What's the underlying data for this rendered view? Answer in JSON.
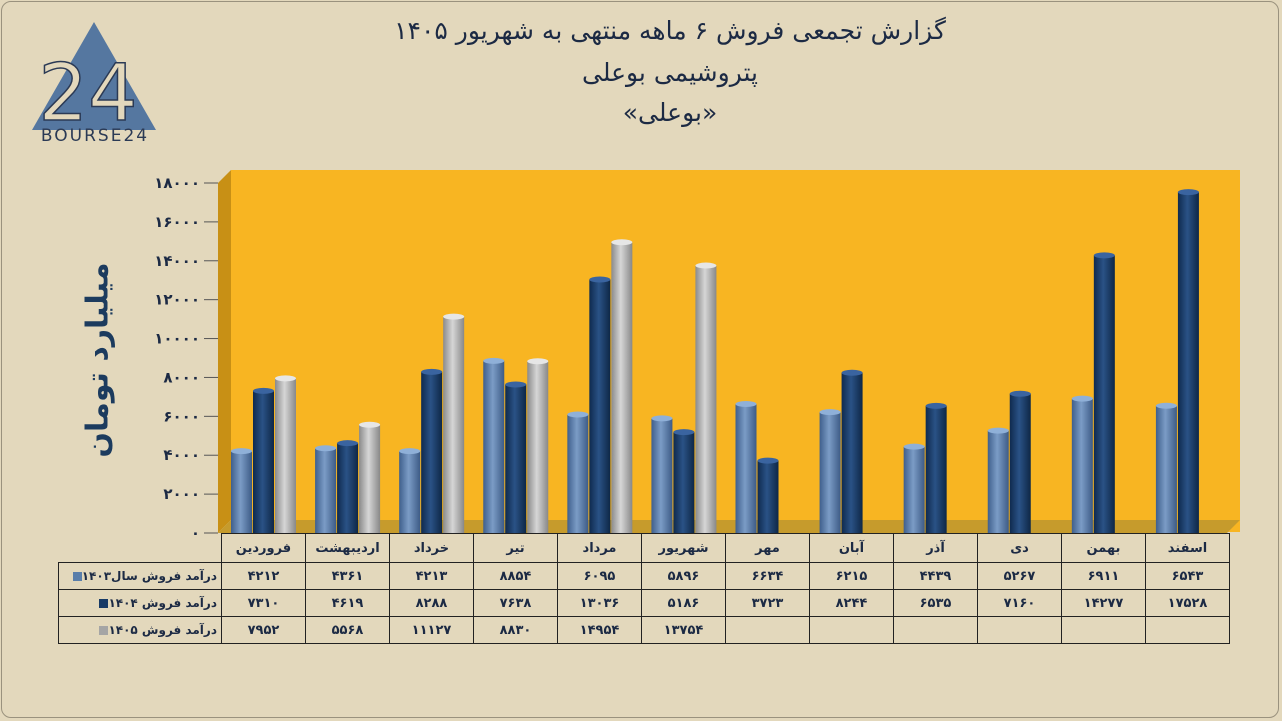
{
  "logo": {
    "text": "BOURSE24",
    "mark": "24"
  },
  "title": {
    "line1": "گزارش تجمعی فروش ۶ ماهه منتهی به شهریور ۱۴۰۵",
    "line2": "پتروشیمی بوعلی",
    "line3": "«بوعلی»"
  },
  "colors": {
    "plot_bg": "#f8b522",
    "series_1403": "#5a7eaa",
    "series_1404": "#183a66",
    "series_1405": "#a5a5a5"
  },
  "chart_data": {
    "type": "bar",
    "ylabel": "میلیارد تومان",
    "ylim": [
      0,
      18000
    ],
    "yticks": [
      "۰",
      "۲۰۰۰",
      "۴۰۰۰",
      "۶۰۰۰",
      "۸۰۰۰",
      "۱۰۰۰۰",
      "۱۲۰۰۰",
      "۱۴۰۰۰",
      "۱۶۰۰۰",
      "۱۸۰۰۰"
    ],
    "categories": [
      "فروردین",
      "اردیبهشت",
      "خرداد",
      "تیر",
      "مرداد",
      "شهریور",
      "مهر",
      "آبان",
      "آذر",
      "دی",
      "بهمن",
      "اسفند"
    ],
    "series": [
      {
        "name": "درآمد فروش سال۱۴۰۳",
        "values": [
          4212,
          4361,
          4213,
          8854,
          6095,
          5896,
          6634,
          6215,
          4439,
          5267,
          6911,
          6543
        ]
      },
      {
        "name": "درآمد فروش ۱۴۰۴",
        "values": [
          7310,
          4619,
          8288,
          7638,
          13036,
          5186,
          3723,
          8244,
          6535,
          7160,
          14277,
          17528
        ]
      },
      {
        "name": "درآمد فروش ۱۴۰۵",
        "values": [
          7952,
          5568,
          11127,
          8830,
          14954,
          13754,
          null,
          null,
          null,
          null,
          null,
          null
        ]
      }
    ],
    "grid": false,
    "legend": "table-bottom"
  },
  "table": {
    "rows": [
      {
        "label": "درآمد فروش سال۱۴۰۳",
        "cells": [
          "۴۲۱۲",
          "۴۳۶۱",
          "۴۲۱۳",
          "۸۸۵۴",
          "۶۰۹۵",
          "۵۸۹۶",
          "۶۶۳۴",
          "۶۲۱۵",
          "۴۴۳۹",
          "۵۲۶۷",
          "۶۹۱۱",
          "۶۵۴۳"
        ]
      },
      {
        "label": "درآمد فروش ۱۴۰۴",
        "cells": [
          "۷۳۱۰",
          "۴۶۱۹",
          "۸۲۸۸",
          "۷۶۳۸",
          "۱۳۰۳۶",
          "۵۱۸۶",
          "۳۷۲۳",
          "۸۲۴۴",
          "۶۵۳۵",
          "۷۱۶۰",
          "۱۴۲۷۷",
          "۱۷۵۲۸"
        ]
      },
      {
        "label": "درآمد فروش ۱۴۰۵",
        "cells": [
          "۷۹۵۲",
          "۵۵۶۸",
          "۱۱۱۲۷",
          "۸۸۳۰",
          "۱۴۹۵۴",
          "۱۳۷۵۴",
          "",
          "",
          "",
          "",
          "",
          ""
        ]
      }
    ]
  }
}
